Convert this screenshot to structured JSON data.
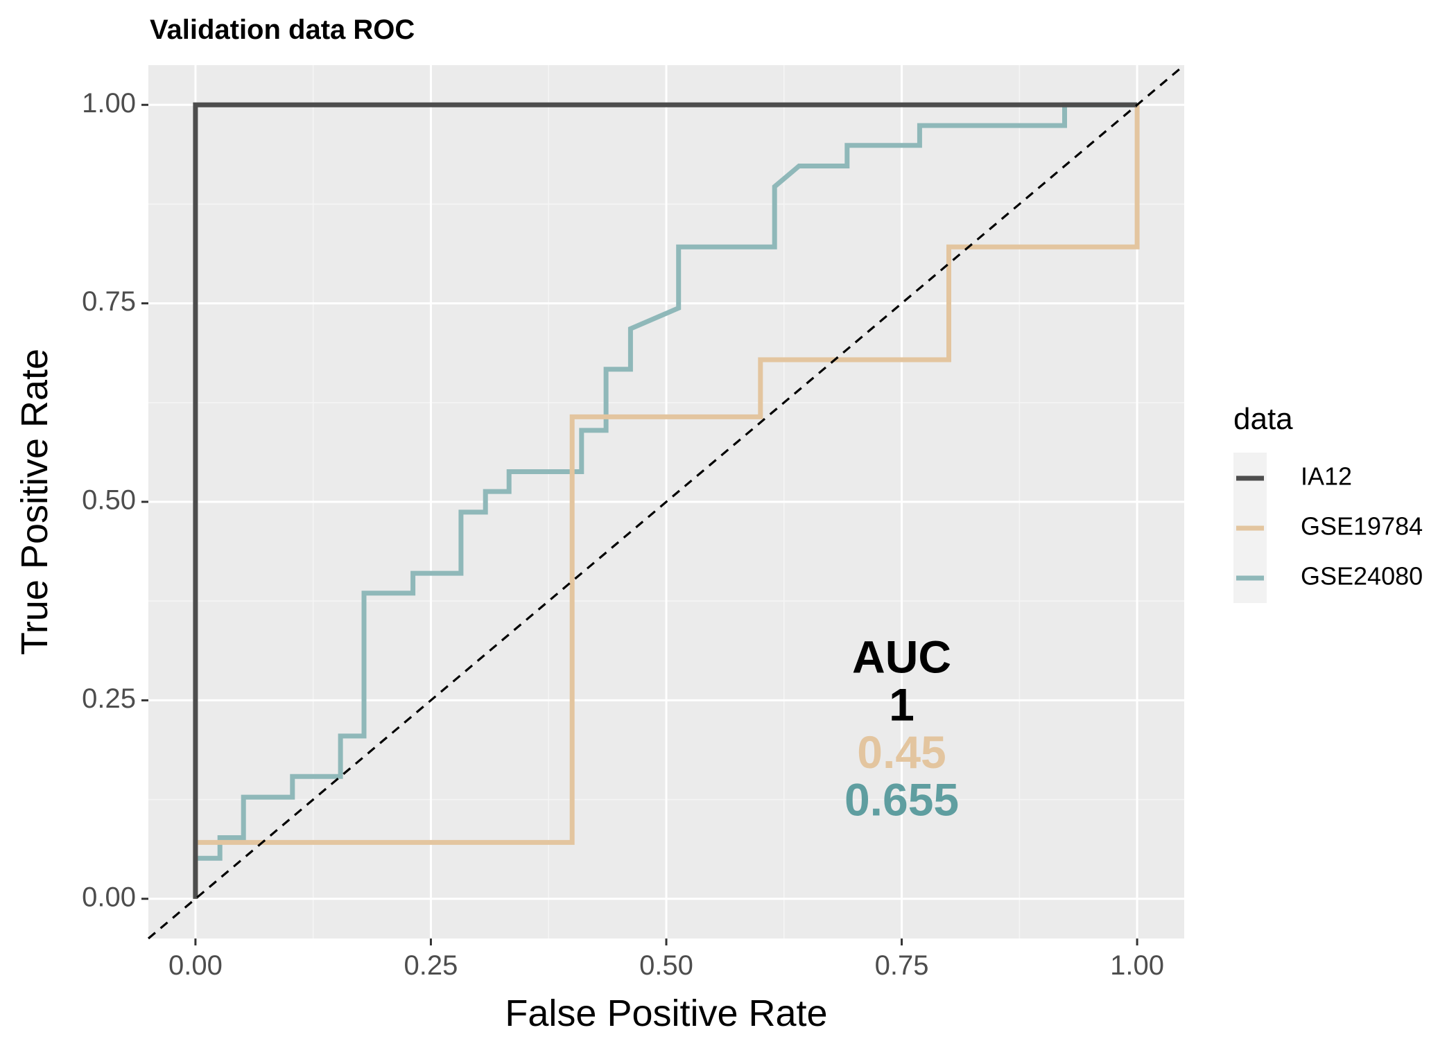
{
  "chart_data": {
    "type": "line",
    "title": "Validation data ROC",
    "xlabel": "False Positive Rate",
    "ylabel": "True Positive Rate",
    "xlim": [
      -0.05,
      1.05
    ],
    "ylim": [
      -0.05,
      1.05
    ],
    "x_ticks": [
      0,
      0.25,
      0.5,
      0.75,
      1
    ],
    "y_ticks": [
      0,
      0.25,
      0.5,
      0.75,
      1
    ],
    "x_tick_labels": [
      "0.00",
      "0.25",
      "0.50",
      "0.75",
      "1.00"
    ],
    "y_tick_labels": [
      "0.00",
      "0.25",
      "0.50",
      "0.75",
      "1.00"
    ],
    "grid": true,
    "legend": {
      "title": "data",
      "position": "right"
    },
    "reference_line": {
      "style": "dashed",
      "from": [
        -0.05,
        -0.05
      ],
      "to": [
        1.05,
        1.05
      ],
      "color": "#000000"
    },
    "series": [
      {
        "name": "IA12",
        "color": "#4d4d4d",
        "x": [
          0,
          0,
          1
        ],
        "y": [
          0,
          1,
          1
        ]
      },
      {
        "name": "GSE19784",
        "color": "#e3c59f",
        "x": [
          0,
          0,
          0.4,
          0.4,
          0.6,
          0.6,
          0.8,
          0.8,
          1.0,
          1.0
        ],
        "y": [
          0,
          0.071,
          0.071,
          0.607,
          0.607,
          0.679,
          0.679,
          0.821,
          0.821,
          1.0
        ]
      },
      {
        "name": "GSE24080",
        "color": "#8fb8b9",
        "x": [
          0,
          0,
          0.026,
          0.026,
          0.051,
          0.051,
          0.103,
          0.103,
          0.154,
          0.154,
          0.179,
          0.179,
          0.231,
          0.231,
          0.282,
          0.282,
          0.308,
          0.308,
          0.333,
          0.333,
          0.41,
          0.41,
          0.436,
          0.436,
          0.462,
          0.462,
          0.513,
          0.513,
          0.615,
          0.615,
          0.641,
          0.692,
          0.692,
          0.769,
          0.769,
          0.923,
          0.923,
          1.0
        ],
        "y": [
          0,
          0.051,
          0.051,
          0.077,
          0.077,
          0.128,
          0.128,
          0.154,
          0.154,
          0.205,
          0.205,
          0.385,
          0.385,
          0.41,
          0.41,
          0.487,
          0.487,
          0.513,
          0.513,
          0.538,
          0.538,
          0.59,
          0.59,
          0.667,
          0.667,
          0.718,
          0.744,
          0.821,
          0.821,
          0.897,
          0.923,
          0.923,
          0.949,
          0.949,
          0.974,
          0.974,
          1.0,
          1.0
        ]
      }
    ],
    "annotations": [
      {
        "text": "AUC",
        "x": 0.75,
        "y": 0.3,
        "color": "#000000"
      },
      {
        "text": "1",
        "x": 0.75,
        "y": 0.24,
        "color": "#000000"
      },
      {
        "text": "0.45",
        "x": 0.75,
        "y": 0.18,
        "color": "#e3c59f"
      },
      {
        "text": "0.655",
        "x": 0.75,
        "y": 0.12,
        "color": "#5f9ea0"
      }
    ]
  }
}
